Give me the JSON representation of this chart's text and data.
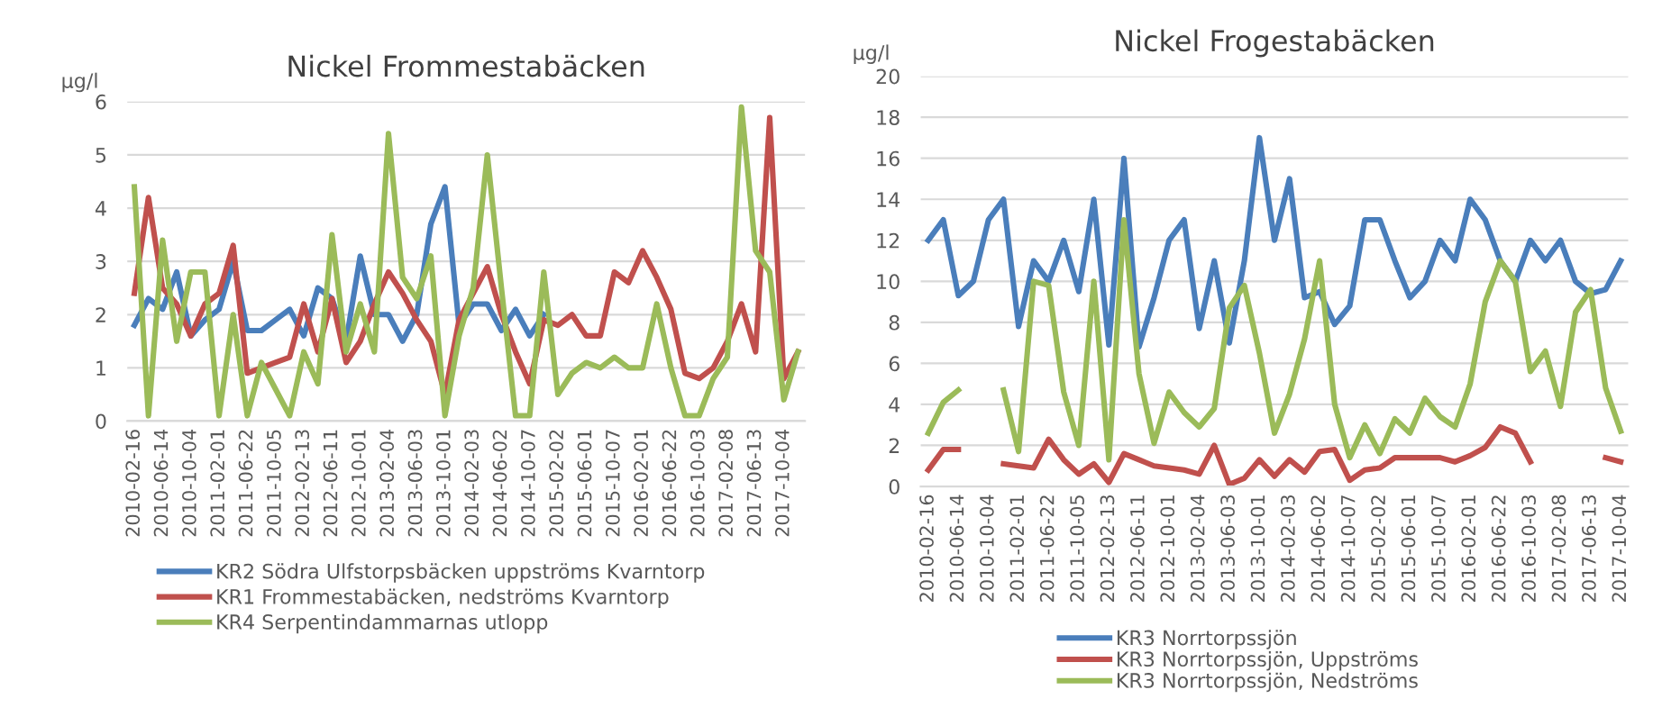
{
  "chart_data": [
    {
      "type": "line",
      "title": "Nickel Frommestabäcken",
      "ylabel": "µg/l",
      "categories": [
        "2010-02-16",
        null,
        "2010-06-14",
        null,
        "2010-10-04",
        null,
        "2011-02-01",
        null,
        "2011-06-22",
        null,
        "2011-10-05",
        null,
        "2012-02-13",
        null,
        "2012-06-11",
        null,
        "2012-10-01",
        null,
        "2013-02-04",
        null,
        "2013-06-03",
        null,
        "2013-10-01",
        null,
        "2014-02-03",
        null,
        "2014-06-02",
        null,
        "2014-10-07",
        null,
        "2015-02-02",
        null,
        "2015-06-01",
        null,
        "2015-10-07",
        null,
        "2016-02-01",
        null,
        "2016-06-22",
        null,
        "2016-10-03",
        null,
        "2017-02-08",
        null,
        "2017-06-13",
        null,
        "2017-10-04",
        null
      ],
      "series": [
        {
          "name": "KR2 Södra Ulfstorpsbäcken uppströms Kvarntorp",
          "color": "#4a7ebb",
          "values": [
            1.8,
            2.3,
            2.1,
            2.8,
            1.6,
            1.9,
            2.1,
            3.0,
            1.7,
            1.7,
            1.9,
            2.1,
            1.6,
            2.5,
            2.3,
            1.5,
            3.1,
            2.0,
            2.0,
            1.5,
            2.0,
            3.7,
            4.4,
            1.8,
            2.2,
            2.2,
            1.7,
            2.1,
            1.6,
            2.0,
            null,
            null,
            null,
            null,
            null,
            null,
            null,
            null,
            null,
            null,
            null,
            null,
            null,
            null,
            null,
            null,
            null,
            null
          ]
        },
        {
          "name": "KR1 Frommestabäcken, nedströms Kvarntorp",
          "color": "#c0504d",
          "values": [
            2.4,
            4.2,
            2.5,
            2.2,
            1.6,
            2.2,
            2.4,
            3.3,
            0.9,
            1.0,
            1.1,
            1.2,
            2.2,
            1.3,
            2.3,
            1.1,
            1.5,
            2.2,
            2.8,
            2.4,
            1.9,
            1.5,
            0.5,
            1.9,
            2.4,
            2.9,
            2.0,
            1.3,
            0.7,
            1.9,
            1.8,
            2.0,
            1.6,
            1.6,
            2.8,
            2.6,
            3.2,
            2.7,
            2.1,
            0.9,
            0.8,
            1.0,
            1.5,
            2.2,
            1.3,
            5.7,
            0.8,
            1.3
          ]
        },
        {
          "name": "KR4 Serpentindammarnas utlopp",
          "color": "#9bbb59",
          "values": [
            4.4,
            0.1,
            3.4,
            1.5,
            2.8,
            2.8,
            0.1,
            2.0,
            0.1,
            1.1,
            0.6,
            0.1,
            1.3,
            0.7,
            3.5,
            1.3,
            2.2,
            1.3,
            5.4,
            2.7,
            2.3,
            3.1,
            0.1,
            1.6,
            2.5,
            5.0,
            2.5,
            0.1,
            0.1,
            2.8,
            0.5,
            0.9,
            1.1,
            1.0,
            1.2,
            1.0,
            1.0,
            2.2,
            1.0,
            0.1,
            0.1,
            0.8,
            1.2,
            5.9,
            3.2,
            2.8,
            0.4,
            1.3
          ]
        }
      ],
      "ylim": [
        0,
        6
      ],
      "yticks": [
        0,
        1,
        2,
        3,
        4,
        5,
        6
      ],
      "grid": "y",
      "legend": "bottom",
      "marker": "none",
      "line_style": "solid"
    },
    {
      "type": "line",
      "title": "Nickel Frogestabäcken",
      "ylabel": "µg/l",
      "categories": [
        "2010-02-16",
        null,
        "2010-06-14",
        null,
        "2010-10-04",
        null,
        "2011-02-01",
        null,
        "2011-06-22",
        null,
        "2011-10-05",
        null,
        "2012-02-13",
        null,
        "2012-06-11",
        null,
        "2012-10-01",
        null,
        "2013-02-04",
        null,
        "2013-06-03",
        null,
        "2013-10-01",
        null,
        "2014-02-03",
        null,
        "2014-06-02",
        null,
        "2014-10-07",
        null,
        "2015-02-02",
        null,
        "2015-06-01",
        null,
        "2015-10-07",
        null,
        "2016-02-01",
        null,
        "2016-06-22",
        null,
        "2016-10-03",
        null,
        "2017-02-08",
        null,
        "2017-06-13",
        null,
        "2017-10-04"
      ],
      "series": [
        {
          "name": "KR3 Norrtorpssjön",
          "color": "#4a7ebb",
          "values": [
            12,
            13,
            9.3,
            10,
            13,
            14,
            7.8,
            11,
            10,
            12,
            9.5,
            14,
            6.9,
            16,
            6.8,
            9.2,
            12,
            13,
            7.7,
            11,
            7,
            11,
            17,
            12,
            15,
            9.2,
            9.5,
            7.9,
            8.8,
            13,
            13,
            11,
            9.2,
            10,
            12,
            11,
            14,
            13,
            11,
            10,
            12,
            11,
            12,
            10,
            9.4,
            9.6,
            11
          ]
        },
        {
          "name": "KR3 Norrtorpssjön, Uppströms",
          "color": "#c0504d",
          "values": [
            0.8,
            1.8,
            1.8,
            null,
            null,
            1.1,
            1.0,
            0.9,
            2.3,
            1.3,
            0.6,
            1.1,
            0.2,
            1.6,
            1.3,
            1.0,
            0.9,
            0.8,
            0.6,
            2.0,
            0.1,
            0.4,
            1.3,
            0.5,
            1.3,
            0.7,
            1.7,
            1.8,
            0.3,
            0.8,
            0.9,
            1.4,
            1.4,
            1.4,
            1.4,
            1.2,
            1.5,
            1.9,
            2.9,
            2.6,
            1.2,
            null,
            null,
            null,
            null,
            1.4,
            1.2
          ]
        },
        {
          "name": "KR3 Norrtorpssjön, Nedströms",
          "color": "#9bbb59",
          "values": [
            2.6,
            4.1,
            4.7,
            null,
            null,
            4.7,
            1.7,
            10,
            9.8,
            4.6,
            2,
            10,
            1.3,
            13,
            5.5,
            2.1,
            4.6,
            3.6,
            2.9,
            3.8,
            8.7,
            9.8,
            6.5,
            2.6,
            4.5,
            7.2,
            11,
            4,
            1.4,
            3,
            1.6,
            3.3,
            2.6,
            4.3,
            3.4,
            2.9,
            5,
            9,
            11,
            10,
            5.6,
            6.6,
            3.9,
            8.5,
            9.6,
            4.8,
            2.7
          ]
        }
      ],
      "ylim": [
        0,
        20
      ],
      "yticks": [
        0,
        2,
        4,
        6,
        8,
        10,
        12,
        14,
        16,
        18,
        20
      ],
      "grid": "y",
      "legend": "bottom",
      "marker": "none",
      "line_style": "solid"
    }
  ]
}
